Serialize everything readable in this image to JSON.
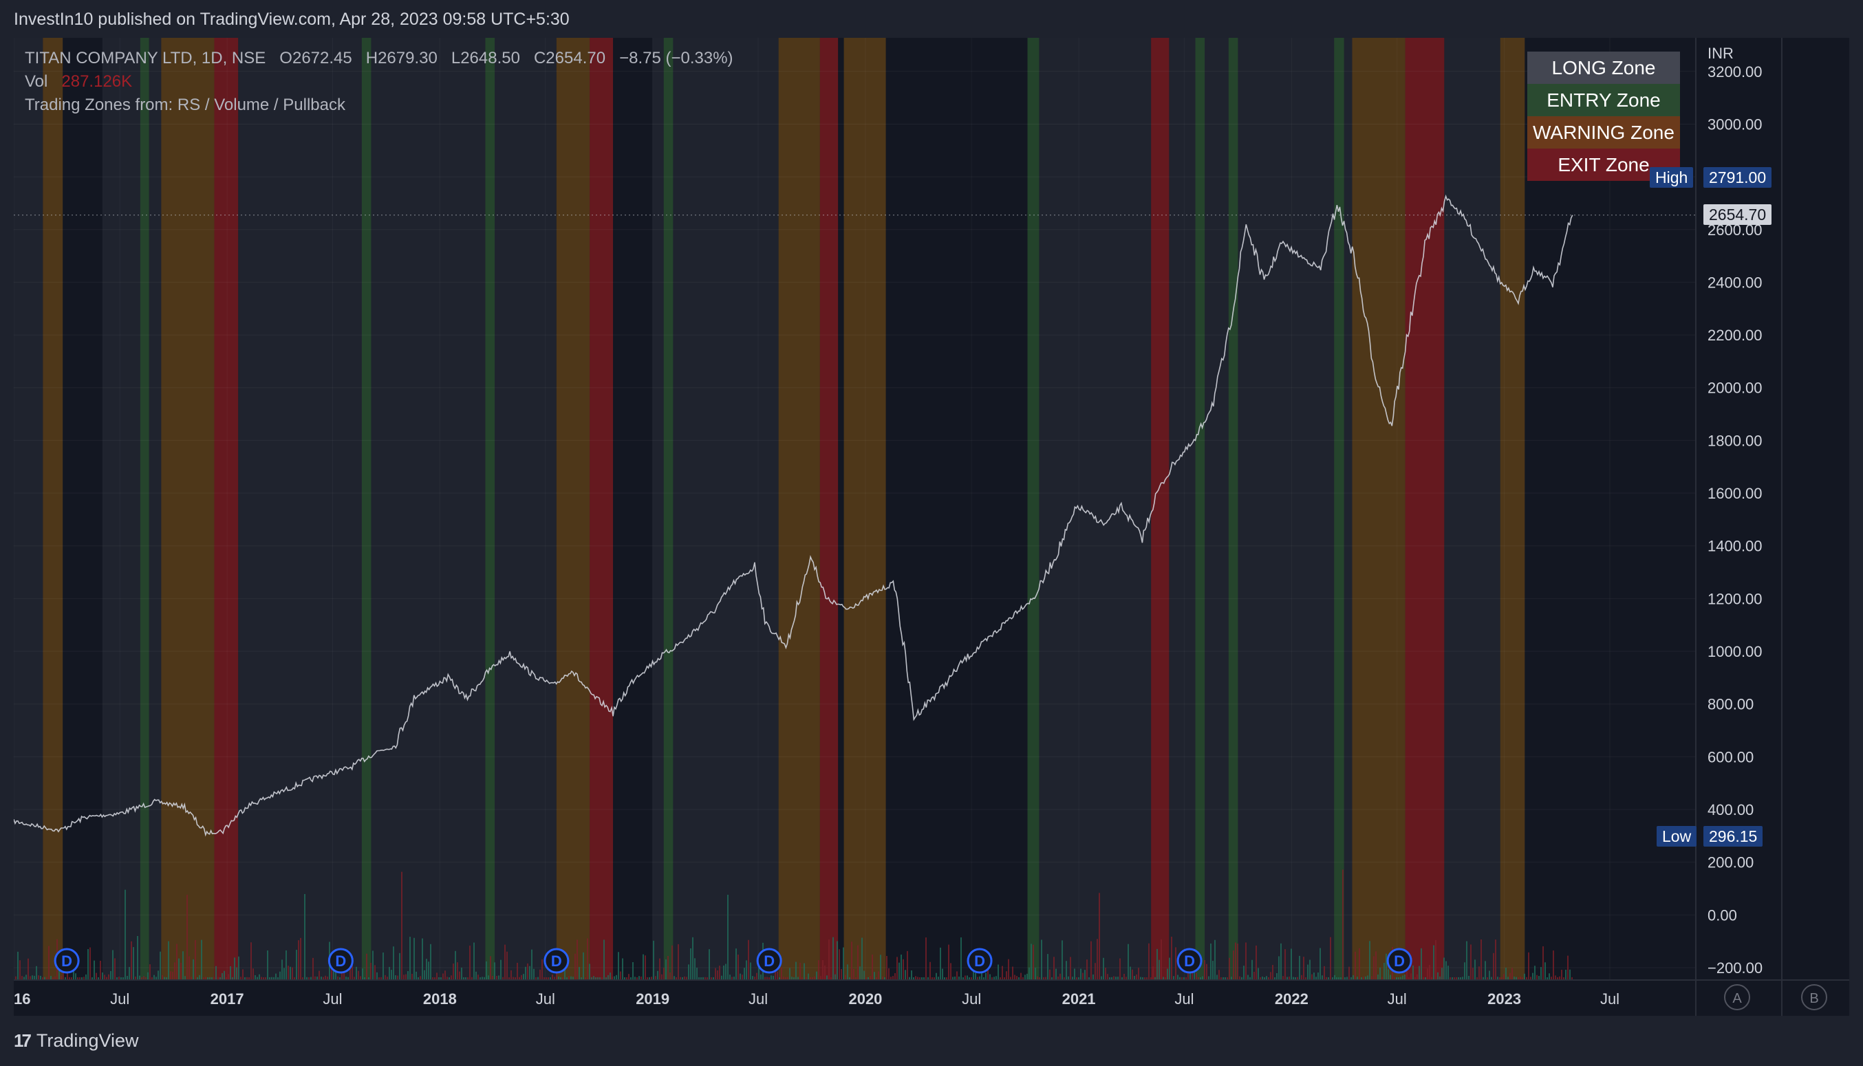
{
  "publish_line": "InvestIn10 published on TradingView.com, Apr 28, 2023 09:58 UTC+5:30",
  "header": {
    "symbol": "TITAN COMPANY LTD, 1D, NSE",
    "open": "O2672.45",
    "high": "H2679.30",
    "low": "L2648.50",
    "close": "C2654.70",
    "change": "−8.75 (−0.33%)",
    "vol_label": "Vol",
    "vol_value": "287.126K",
    "indicator": "Trading Zones from: RS / Volume / Pullback"
  },
  "legend": [
    {
      "label": "LONG Zone",
      "color": "#434651"
    },
    {
      "label": "ENTRY Zone",
      "color": "#2a4a30"
    },
    {
      "label": "WARNING Zone",
      "color": "#6b3a1b"
    },
    {
      "label": "EXIT Zone",
      "color": "#6e1a22"
    }
  ],
  "price_axis": {
    "currency": "INR",
    "high_label": "High",
    "high_value": "2791.00",
    "low_label": "Low",
    "low_value": "296.15",
    "last_value": "2654.70"
  },
  "axis_buttons": [
    "A",
    "B"
  ],
  "dividend_marker": "D",
  "brand": "TradingView",
  "colors": {
    "background": "#131722",
    "long_zone": "#2a2e39",
    "entry_zone": "#26482c",
    "warning_zone": "#ff9800",
    "exit_zone": "#b71c1c",
    "price_line": "#d1d4dc",
    "vol_up": "#1f6b5a",
    "vol_down": "#7a1f28"
  },
  "chart_data": {
    "type": "line",
    "title": "TITAN COMPANY LTD, 1D, NSE",
    "ylim": [
      -200,
      3200
    ],
    "yticks": [
      3200,
      3000,
      2800,
      2600,
      2400,
      2200,
      2000,
      1800,
      1600,
      1400,
      1200,
      1000,
      800,
      600,
      400,
      200,
      0,
      -200
    ],
    "ytick_labels": [
      "3200.00",
      "3000.00",
      "2800.00",
      "2600.00",
      "2400.00",
      "2200.00",
      "2000.00",
      "1800.00",
      "1600.00",
      "1400.00",
      "1200.00",
      "1000.00",
      "800.00",
      "600.00",
      "400.00",
      "200.00",
      "0.00",
      "−200.00"
    ],
    "xlim": [
      "2016-01-01",
      "2023-10-01"
    ],
    "xticks": [
      {
        "label": "2016",
        "date": "2016-01-01"
      },
      {
        "label": "Jul",
        "date": "2016-07-01"
      },
      {
        "label": "2017",
        "date": "2017-01-01"
      },
      {
        "label": "Jul",
        "date": "2017-07-01"
      },
      {
        "label": "2018",
        "date": "2018-01-01"
      },
      {
        "label": "Jul",
        "date": "2018-07-01"
      },
      {
        "label": "2019",
        "date": "2019-01-01"
      },
      {
        "label": "Jul",
        "date": "2019-07-01"
      },
      {
        "label": "2020",
        "date": "2020-01-01"
      },
      {
        "label": "Jul",
        "date": "2020-07-01"
      },
      {
        "label": "2021",
        "date": "2021-01-01"
      },
      {
        "label": "Jul",
        "date": "2021-07-01"
      },
      {
        "label": "2022",
        "date": "2022-01-01"
      },
      {
        "label": "Jul",
        "date": "2022-07-01"
      },
      {
        "label": "2023",
        "date": "2023-01-01"
      },
      {
        "label": "Jul",
        "date": "2023-07-01"
      }
    ],
    "grid": true,
    "legend_position": "top-right",
    "series": [
      {
        "name": "TITAN",
        "points": [
          [
            "2016-01-01",
            355
          ],
          [
            "2016-02-15",
            335
          ],
          [
            "2016-03-20",
            320
          ],
          [
            "2016-05-01",
            370
          ],
          [
            "2016-07-01",
            385
          ],
          [
            "2016-09-01",
            430
          ],
          [
            "2016-10-20",
            410
          ],
          [
            "2016-11-25",
            310
          ],
          [
            "2016-12-25",
            320
          ],
          [
            "2017-02-01",
            410
          ],
          [
            "2017-04-01",
            465
          ],
          [
            "2017-06-01",
            520
          ],
          [
            "2017-08-01",
            560
          ],
          [
            "2017-09-15",
            620
          ],
          [
            "2017-10-15",
            640
          ],
          [
            "2017-11-20",
            830
          ],
          [
            "2018-01-15",
            900
          ],
          [
            "2018-02-15",
            820
          ],
          [
            "2018-04-01",
            940
          ],
          [
            "2018-05-01",
            990
          ],
          [
            "2018-06-10",
            910
          ],
          [
            "2018-07-15",
            870
          ],
          [
            "2018-08-15",
            930
          ],
          [
            "2018-09-15",
            840
          ],
          [
            "2018-10-25",
            770
          ],
          [
            "2018-12-01",
            900
          ],
          [
            "2019-01-15",
            980
          ],
          [
            "2019-03-01",
            1050
          ],
          [
            "2019-04-15",
            1150
          ],
          [
            "2019-05-20",
            1260
          ],
          [
            "2019-06-25",
            1320
          ],
          [
            "2019-07-15",
            1100
          ],
          [
            "2019-08-20",
            1020
          ],
          [
            "2019-09-15",
            1250
          ],
          [
            "2019-10-01",
            1360
          ],
          [
            "2019-10-25",
            1200
          ],
          [
            "2019-12-01",
            1160
          ],
          [
            "2020-01-15",
            1220
          ],
          [
            "2020-02-20",
            1260
          ],
          [
            "2020-03-24",
            750
          ],
          [
            "2020-05-15",
            870
          ],
          [
            "2020-06-15",
            960
          ],
          [
            "2020-08-01",
            1050
          ],
          [
            "2020-09-15",
            1150
          ],
          [
            "2020-10-15",
            1200
          ],
          [
            "2020-11-20",
            1350
          ],
          [
            "2020-12-30",
            1550
          ],
          [
            "2021-02-15",
            1480
          ],
          [
            "2021-03-15",
            1550
          ],
          [
            "2021-04-20",
            1430
          ],
          [
            "2021-05-15",
            1600
          ],
          [
            "2021-06-15",
            1720
          ],
          [
            "2021-07-20",
            1800
          ],
          [
            "2021-08-20",
            1950
          ],
          [
            "2021-09-15",
            2200
          ],
          [
            "2021-10-15",
            2620
          ],
          [
            "2021-11-15",
            2400
          ],
          [
            "2021-12-15",
            2550
          ],
          [
            "2022-01-15",
            2500
          ],
          [
            "2022-02-20",
            2450
          ],
          [
            "2022-03-20",
            2700
          ],
          [
            "2022-04-20",
            2480
          ],
          [
            "2022-05-25",
            2050
          ],
          [
            "2022-06-20",
            1850
          ],
          [
            "2022-07-15",
            2150
          ],
          [
            "2022-08-20",
            2560
          ],
          [
            "2022-09-25",
            2720
          ],
          [
            "2022-10-25",
            2640
          ],
          [
            "2022-11-25",
            2520
          ],
          [
            "2022-12-25",
            2400
          ],
          [
            "2023-01-25",
            2330
          ],
          [
            "2023-02-20",
            2450
          ],
          [
            "2023-03-25",
            2400
          ],
          [
            "2023-04-28",
            2654.7
          ]
        ]
      }
    ],
    "zones": [
      {
        "zone": "long",
        "start": "2016-01-01",
        "end": "2016-02-20"
      },
      {
        "zone": "warning",
        "start": "2016-02-20",
        "end": "2016-03-25"
      },
      {
        "zone": "long",
        "start": "2016-06-01",
        "end": "2016-09-10"
      },
      {
        "zone": "entry",
        "start": "2016-08-05",
        "end": "2016-08-20"
      },
      {
        "zone": "warning",
        "start": "2016-09-10",
        "end": "2016-12-10"
      },
      {
        "zone": "exit",
        "start": "2016-12-10",
        "end": "2017-01-20"
      },
      {
        "zone": "long",
        "start": "2017-01-20",
        "end": "2018-07-20"
      },
      {
        "zone": "entry",
        "start": "2017-08-20",
        "end": "2017-09-05"
      },
      {
        "zone": "entry",
        "start": "2018-03-20",
        "end": "2018-04-05"
      },
      {
        "zone": "warning",
        "start": "2018-07-20",
        "end": "2018-09-15"
      },
      {
        "zone": "exit",
        "start": "2018-09-15",
        "end": "2018-10-25"
      },
      {
        "zone": "long",
        "start": "2019-01-01",
        "end": "2019-08-05"
      },
      {
        "zone": "entry",
        "start": "2019-01-20",
        "end": "2019-02-05"
      },
      {
        "zone": "warning",
        "start": "2019-08-05",
        "end": "2019-10-15"
      },
      {
        "zone": "exit",
        "start": "2019-10-15",
        "end": "2019-11-15"
      },
      {
        "zone": "warning",
        "start": "2019-11-25",
        "end": "2020-02-05"
      },
      {
        "zone": "entry",
        "start": "2020-10-05",
        "end": "2020-10-25"
      },
      {
        "zone": "long",
        "start": "2020-10-25",
        "end": "2021-05-05"
      },
      {
        "zone": "exit",
        "start": "2021-05-05",
        "end": "2021-06-05"
      },
      {
        "zone": "long",
        "start": "2021-06-05",
        "end": "2022-04-15"
      },
      {
        "zone": "entry",
        "start": "2021-07-20",
        "end": "2021-08-05"
      },
      {
        "zone": "entry",
        "start": "2021-09-15",
        "end": "2021-10-01"
      },
      {
        "zone": "entry",
        "start": "2022-03-15",
        "end": "2022-04-01"
      },
      {
        "zone": "warning",
        "start": "2022-04-15",
        "end": "2022-07-15"
      },
      {
        "zone": "exit",
        "start": "2022-07-15",
        "end": "2022-09-20"
      },
      {
        "zone": "long",
        "start": "2022-09-20",
        "end": "2022-12-25"
      },
      {
        "zone": "warning",
        "start": "2022-12-25",
        "end": "2023-02-05"
      }
    ],
    "dividends": [
      "2016-04-01",
      "2017-07-15",
      "2018-07-20",
      "2019-07-20",
      "2020-07-15",
      "2021-07-10",
      "2022-07-05"
    ]
  }
}
